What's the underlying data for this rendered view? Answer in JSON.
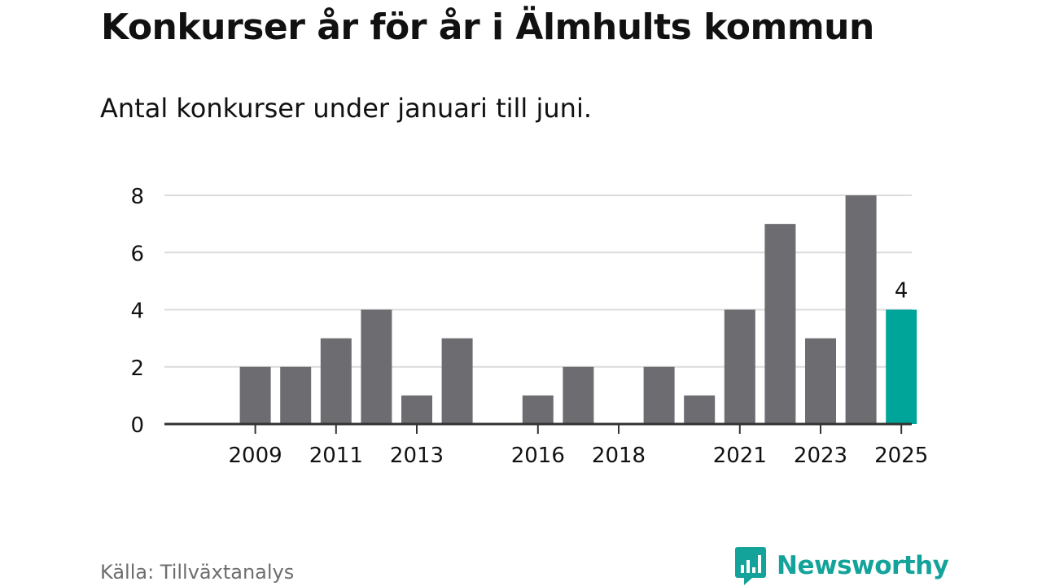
{
  "title": "Konkurser år för år i Älmhults kommun",
  "subtitle": "Antal konkurser under januari till juni.",
  "source": "Källa: Tillväxtanalys",
  "logo": {
    "text": "Newsworthy",
    "icon": "newsworthy-logo-icon"
  },
  "colors": {
    "bar": "#6d6c71",
    "highlight": "#00a59a",
    "grid": "#dcdcdc",
    "axis": "#333333",
    "text": "#111111",
    "source_text": "#6e6e6e",
    "brand": "#14a39a"
  },
  "chart_data": {
    "type": "bar",
    "title": "Konkurser år för år i Älmhults kommun",
    "subtitle": "Antal konkurser under januari till juni.",
    "categories": [
      "2008",
      "2009",
      "2010",
      "2011",
      "2012",
      "2013",
      "2014",
      "2015",
      "2016",
      "2017",
      "2018",
      "2019",
      "2020",
      "2021",
      "2022",
      "2023",
      "2024",
      "2025"
    ],
    "values": [
      0,
      2,
      2,
      3,
      4,
      1,
      3,
      0,
      1,
      2,
      0,
      2,
      1,
      4,
      7,
      3,
      8,
      4
    ],
    "highlight_category": "2025",
    "data_labels": [
      {
        "category": "2025",
        "text": "4"
      }
    ],
    "x_tick_labels": [
      "2009",
      "2011",
      "2013",
      "2016",
      "2018",
      "2021",
      "2023",
      "2025"
    ],
    "y_ticks": [
      0,
      2,
      4,
      6,
      8
    ],
    "ylim": [
      0,
      8
    ],
    "grid": true,
    "legend": "none",
    "xlabel": "",
    "ylabel": ""
  }
}
